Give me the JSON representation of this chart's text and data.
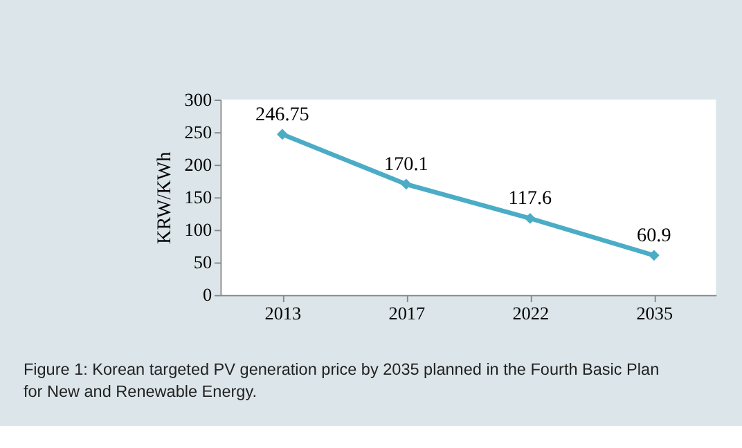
{
  "chart_data": {
    "type": "line",
    "ylabel": "KRW/KWh",
    "categories": [
      "2013",
      "2017",
      "2022",
      "2035"
    ],
    "series": [
      {
        "color": "#4bacc6",
        "values": [
          246.75,
          170.1,
          117.6,
          60.9
        ]
      }
    ],
    "ylim": [
      0,
      300
    ],
    "yticks": [
      0,
      50,
      100,
      150,
      200,
      250,
      300
    ],
    "data_labels": true,
    "grid": false,
    "legend": false,
    "marker": "diamond",
    "line_style": "solid",
    "annotations": [
      "Figure 1: Korean targeted PV generation price by 2035 planned in the Fourth Basic Plan for New and Renewable Energy."
    ]
  }
}
